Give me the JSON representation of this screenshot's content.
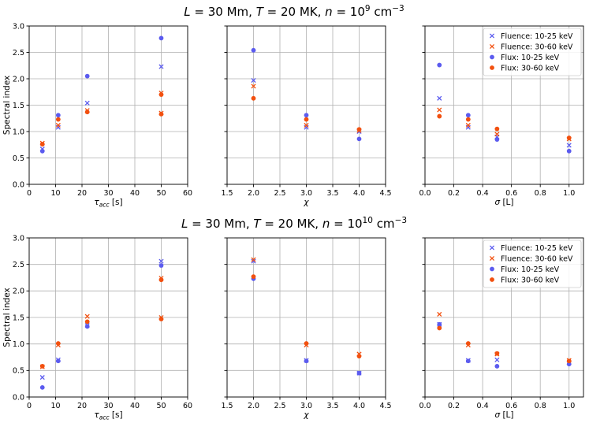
{
  "figure": {
    "rows": [
      {
        "title_parts": {
          "L": "L",
          "eq1": " = 30 Mm, ",
          "T": "T",
          "eq2": " = 20 MK, ",
          "n": "n",
          "eq3": " = 10",
          "exp": "9",
          "unit": " cm",
          "unit_exp": "−3"
        }
      },
      {
        "title_parts": {
          "L": "L",
          "eq1": " = 30 Mm, ",
          "T": "T",
          "eq2": " = 20 MK, ",
          "n": "n",
          "eq3": " = 10",
          "exp": "10",
          "unit": " cm",
          "unit_exp": "−3"
        }
      }
    ],
    "shared_ylabel": "Spectral index"
  },
  "colors": {
    "fluence_10_25": "#5b5bef",
    "fluence_30_60": "#f2500f",
    "flux_10_25": "#5b5bef",
    "flux_30_60": "#f2500f"
  },
  "legend": [
    "Fluence: 10-25 keV",
    "Fluence: 30-60 keV",
    "Flux: 10-25 keV",
    "Flux: 30-60 keV"
  ],
  "chart_data": [
    {
      "type": "scatter",
      "row": 0,
      "col": 0,
      "xlabel_main": "τ",
      "xlabel_sub": "acc",
      "xlabel_unit": " [s]",
      "xlim": [
        0,
        60
      ],
      "xticks": [
        "0",
        "10",
        "20",
        "30",
        "40",
        "50",
        "60"
      ],
      "xtick_values": [
        0,
        10,
        20,
        30,
        40,
        50,
        60
      ],
      "ylim": [
        0,
        3
      ],
      "yticks": [
        "0.0",
        "0.5",
        "1.0",
        "1.5",
        "2.0",
        "2.5",
        "3.0"
      ],
      "ytick_values": [
        0,
        0.5,
        1,
        1.5,
        2,
        2.5,
        3
      ],
      "series": [
        {
          "name": "Fluence: 10-25 keV",
          "marker": "x",
          "x": [
            5,
            11,
            22,
            50
          ],
          "y": [
            0.67,
            1.08,
            1.54,
            2.23
          ]
        },
        {
          "name": "Fluence: 30-60 keV",
          "marker": "x",
          "x": [
            5,
            11,
            22,
            50,
            50
          ],
          "y": [
            0.78,
            1.12,
            1.4,
            1.73,
            1.35
          ]
        },
        {
          "name": "Flux: 10-25 keV",
          "marker": "o",
          "x": [
            5,
            11,
            22,
            50
          ],
          "y": [
            0.63,
            1.31,
            2.05,
            2.77
          ]
        },
        {
          "name": "Flux: 30-60 keV",
          "marker": "o",
          "x": [
            5,
            11,
            22,
            50,
            50
          ],
          "y": [
            0.76,
            1.23,
            1.37,
            1.7,
            1.33
          ]
        }
      ]
    },
    {
      "type": "scatter",
      "row": 0,
      "col": 1,
      "xlabel_main": "χ",
      "xlabel_sub": "",
      "xlabel_unit": "",
      "xlim": [
        1.5,
        4.5
      ],
      "xticks": [
        "1.5",
        "2.0",
        "2.5",
        "3.0",
        "3.5",
        "4.0",
        "4.5"
      ],
      "xtick_values": [
        1.5,
        2,
        2.5,
        3,
        3.5,
        4,
        4.5
      ],
      "ylim": [
        0,
        3
      ],
      "yticks": [],
      "ytick_values": [
        0,
        0.5,
        1,
        1.5,
        2,
        2.5,
        3
      ],
      "series": [
        {
          "name": "Fluence: 10-25 keV",
          "marker": "x",
          "x": [
            2,
            3,
            4
          ],
          "y": [
            1.97,
            1.08,
            1.0
          ]
        },
        {
          "name": "Fluence: 30-60 keV",
          "marker": "x",
          "x": [
            2,
            3,
            4
          ],
          "y": [
            1.86,
            1.12,
            1.02
          ]
        },
        {
          "name": "Flux: 10-25 keV",
          "marker": "o",
          "x": [
            2,
            3,
            4
          ],
          "y": [
            2.54,
            1.31,
            0.86
          ]
        },
        {
          "name": "Flux: 30-60 keV",
          "marker": "o",
          "x": [
            2,
            3,
            4
          ],
          "y": [
            1.63,
            1.23,
            1.04
          ]
        }
      ]
    },
    {
      "type": "scatter",
      "row": 0,
      "col": 2,
      "xlabel_main": "σ",
      "xlabel_sub": "",
      "xlabel_unit": " [L]",
      "xlim": [
        0,
        1.1
      ],
      "xticks": [
        "0.0",
        "0.2",
        "0.4",
        "0.6",
        "0.8",
        "1.0"
      ],
      "xtick_values": [
        0,
        0.2,
        0.4,
        0.6,
        0.8,
        1.0
      ],
      "ylim": [
        0,
        3
      ],
      "yticks": [],
      "ytick_values": [
        0,
        0.5,
        1,
        1.5,
        2,
        2.5,
        3
      ],
      "legend": true,
      "series": [
        {
          "name": "Fluence: 10-25 keV",
          "marker": "x",
          "x": [
            0.1,
            0.3,
            0.5,
            1.0
          ],
          "y": [
            1.63,
            1.08,
            0.9,
            0.74
          ]
        },
        {
          "name": "Fluence: 30-60 keV",
          "marker": "x",
          "x": [
            0.1,
            0.3,
            0.5,
            1.0
          ],
          "y": [
            1.41,
            1.12,
            0.95,
            0.86
          ]
        },
        {
          "name": "Flux: 10-25 keV",
          "marker": "o",
          "x": [
            0.1,
            0.3,
            0.5,
            1.0
          ],
          "y": [
            2.26,
            1.31,
            0.85,
            0.63
          ]
        },
        {
          "name": "Flux: 30-60 keV",
          "marker": "o",
          "x": [
            0.1,
            0.3,
            0.5,
            1.0
          ],
          "y": [
            1.29,
            1.23,
            1.05,
            0.88
          ]
        }
      ]
    },
    {
      "type": "scatter",
      "row": 1,
      "col": 0,
      "xlabel_main": "τ",
      "xlabel_sub": "acc",
      "xlabel_unit": " [s]",
      "xlim": [
        0,
        60
      ],
      "xticks": [
        "0",
        "10",
        "20",
        "30",
        "40",
        "50",
        "60"
      ],
      "xtick_values": [
        0,
        10,
        20,
        30,
        40,
        50,
        60
      ],
      "ylim": [
        0,
        3
      ],
      "yticks": [
        "0.0",
        "0.5",
        "1.0",
        "1.5",
        "2.0",
        "2.5",
        "3.0"
      ],
      "ytick_values": [
        0,
        0.5,
        1,
        1.5,
        2,
        2.5,
        3
      ],
      "series": [
        {
          "name": "Fluence: 10-25 keV",
          "marker": "x",
          "x": [
            5,
            11,
            22,
            50
          ],
          "y": [
            0.37,
            0.7,
            1.35,
            2.56
          ]
        },
        {
          "name": "Fluence: 30-60 keV",
          "marker": "x",
          "x": [
            5,
            11,
            22,
            50,
            50
          ],
          "y": [
            0.57,
            0.98,
            1.52,
            2.24,
            1.5
          ]
        },
        {
          "name": "Flux: 10-25 keV",
          "marker": "o",
          "x": [
            5,
            11,
            22,
            50
          ],
          "y": [
            0.18,
            0.68,
            1.33,
            2.48
          ]
        },
        {
          "name": "Flux: 30-60 keV",
          "marker": "o",
          "x": [
            5,
            11,
            22,
            50,
            50
          ],
          "y": [
            0.58,
            1.01,
            1.42,
            2.21,
            1.47
          ]
        }
      ]
    },
    {
      "type": "scatter",
      "row": 1,
      "col": 1,
      "xlabel_main": "χ",
      "xlabel_sub": "",
      "xlabel_unit": "",
      "xlim": [
        1.5,
        4.5
      ],
      "xticks": [
        "1.5",
        "2.0",
        "2.5",
        "3.0",
        "3.5",
        "4.0",
        "4.5"
      ],
      "xtick_values": [
        1.5,
        2,
        2.5,
        3,
        3.5,
        4,
        4.5
      ],
      "ylim": [
        0,
        3
      ],
      "yticks": [],
      "ytick_values": [
        0,
        0.5,
        1,
        1.5,
        2,
        2.5,
        3
      ],
      "series": [
        {
          "name": "Fluence: 10-25 keV",
          "marker": "x",
          "x": [
            2,
            3,
            4
          ],
          "y": [
            2.56,
            0.69,
            0.45
          ]
        },
        {
          "name": "Fluence: 30-60 keV",
          "marker": "x",
          "x": [
            2,
            3,
            4
          ],
          "y": [
            2.59,
            0.98,
            0.81
          ]
        },
        {
          "name": "Flux: 10-25 keV",
          "marker": "o",
          "x": [
            2,
            3,
            4
          ],
          "y": [
            2.23,
            0.68,
            0.45
          ]
        },
        {
          "name": "Flux: 30-60 keV",
          "marker": "o",
          "x": [
            2,
            3,
            4
          ],
          "y": [
            2.27,
            1.01,
            0.77
          ]
        }
      ]
    },
    {
      "type": "scatter",
      "row": 1,
      "col": 2,
      "xlabel_main": "σ",
      "xlabel_sub": "",
      "xlabel_unit": " [L]",
      "xlim": [
        0,
        1.1
      ],
      "xticks": [
        "0.0",
        "0.2",
        "0.4",
        "0.6",
        "0.8",
        "1.0"
      ],
      "xtick_values": [
        0,
        0.2,
        0.4,
        0.6,
        0.8,
        1.0
      ],
      "ylim": [
        0,
        3
      ],
      "yticks": [],
      "ytick_values": [
        0,
        0.5,
        1,
        1.5,
        2,
        2.5,
        3
      ],
      "legend": true,
      "series": [
        {
          "name": "Fluence: 10-25 keV",
          "marker": "x",
          "x": [
            0.1,
            0.3,
            0.5,
            1.0
          ],
          "y": [
            1.37,
            0.69,
            0.7,
            0.65
          ]
        },
        {
          "name": "Fluence: 30-60 keV",
          "marker": "x",
          "x": [
            0.1,
            0.3,
            0.5,
            1.0
          ],
          "y": [
            1.56,
            0.98,
            0.81,
            0.69
          ]
        },
        {
          "name": "Flux: 10-25 keV",
          "marker": "o",
          "x": [
            0.1,
            0.3,
            0.5,
            1.0
          ],
          "y": [
            1.37,
            0.68,
            0.58,
            0.62
          ]
        },
        {
          "name": "Flux: 30-60 keV",
          "marker": "o",
          "x": [
            0.1,
            0.3,
            0.5,
            1.0
          ],
          "y": [
            1.3,
            1.01,
            0.82,
            0.68
          ]
        }
      ]
    }
  ]
}
